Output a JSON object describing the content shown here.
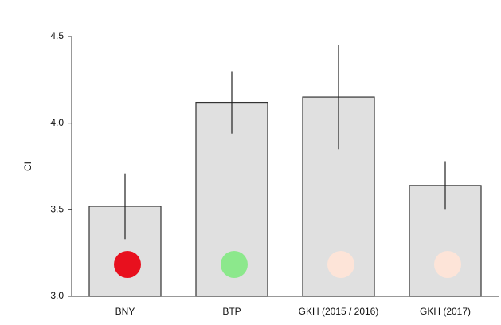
{
  "chart_data": {
    "type": "bar",
    "y_label": "CI",
    "categories": [
      "BNY",
      "BTP",
      "GKH (2015 / 2016)",
      "GKH (2017)"
    ],
    "values": [
      3.52,
      4.12,
      4.15,
      3.64
    ],
    "errors": [
      0.19,
      0.18,
      0.3,
      0.14
    ],
    "color": "#e0e0e0",
    "marker_colors": [
      "#e8101e",
      "#8ce88c",
      "#fde4d8",
      "#fde4d8"
    ],
    "ylim": [
      3.0,
      4.5
    ],
    "yticks": [
      {
        "value": 3.0,
        "label": "3.0"
      },
      {
        "value": 3.5,
        "label": "3.5"
      },
      {
        "value": 4.0,
        "label": "4.0"
      },
      {
        "value": 4.5,
        "label": "4.5"
      }
    ],
    "grid": false
  }
}
